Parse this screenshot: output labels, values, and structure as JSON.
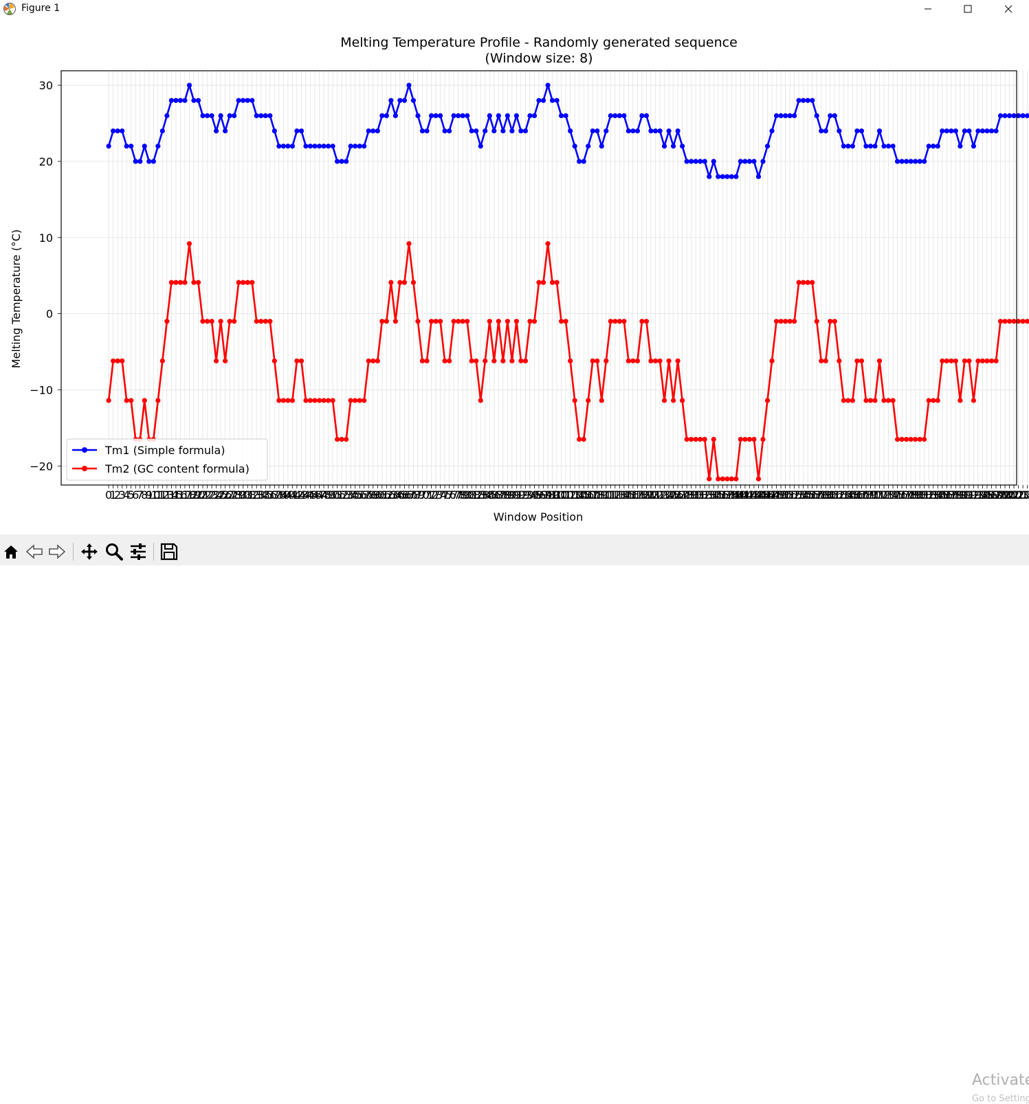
{
  "window": {
    "title": "Figure 1"
  },
  "toolbar": {
    "watermark": "Activate",
    "watermark_sub": "Go to Settings"
  },
  "colors": {
    "tm1": "#0000ff",
    "tm2": "#ff0000"
  },
  "chart_data": {
    "type": "line",
    "title": "Melting Temperature Profile - Randomly generated sequence",
    "subtitle": "(Window size: 8)",
    "xlabel": "Window Position",
    "ylabel": "Melting Temperature (°C)",
    "ylim": [
      -22.5,
      31.9
    ],
    "xlim": [
      -10.6,
      202.6
    ],
    "yticks": [
      -20,
      -10,
      0,
      10,
      20,
      30
    ],
    "grid": true,
    "legend_position": "lower-left",
    "x_start": 0,
    "series": [
      {
        "name": "Tm1 (Simple formula)",
        "color": "#0000ff",
        "values": [
          22,
          24,
          24,
          24,
          22,
          22,
          20,
          20,
          22,
          20,
          20,
          22,
          24,
          26,
          28,
          28,
          28,
          28,
          30,
          28,
          28,
          26,
          26,
          26,
          24,
          26,
          24,
          26,
          26,
          28,
          28,
          28,
          28,
          26,
          26,
          26,
          26,
          24,
          22,
          22,
          22,
          22,
          24,
          24,
          22,
          22,
          22,
          22,
          22,
          22,
          22,
          20,
          20,
          20,
          22,
          22,
          22,
          22,
          24,
          24,
          24,
          26,
          26,
          28,
          26,
          28,
          28,
          30,
          28,
          26,
          24,
          24,
          26,
          26,
          26,
          24,
          24,
          26,
          26,
          26,
          26,
          24,
          24,
          22,
          24,
          26,
          24,
          26,
          24,
          26,
          24,
          26,
          24,
          24,
          26,
          26,
          28,
          28,
          30,
          28,
          28,
          26,
          26,
          24,
          22,
          20,
          20,
          22,
          24,
          24,
          22,
          24,
          26,
          26,
          26,
          26,
          24,
          24,
          24,
          26,
          26,
          24,
          24,
          24,
          22,
          24,
          22,
          24,
          22,
          20,
          20,
          20,
          20,
          20,
          18,
          20,
          18,
          18,
          18,
          18,
          18,
          20,
          20,
          20,
          20,
          18,
          20,
          22,
          24,
          26,
          26,
          26,
          26,
          26,
          28,
          28,
          28,
          28,
          26,
          24,
          24,
          26,
          26,
          24,
          22,
          22,
          22,
          24,
          24,
          22,
          22,
          22,
          24,
          22,
          22,
          22,
          20,
          20,
          20,
          20,
          20,
          20,
          20,
          22,
          22,
          22,
          24,
          24,
          24,
          24,
          22,
          24,
          24,
          22,
          24,
          24,
          24,
          24,
          24,
          26,
          26,
          26,
          26,
          26,
          26,
          26
        ]
      },
      {
        "name": "Tm2 (GC content formula)",
        "color": "#ff0000",
        "values": [
          -11.4,
          -6.2,
          -6.2,
          -6.2,
          -11.4,
          -11.4,
          -16.5,
          -16.5,
          -11.4,
          -16.5,
          -16.5,
          -11.4,
          -6.2,
          -1.0,
          4.1,
          4.1,
          4.1,
          4.1,
          9.2,
          4.1,
          4.1,
          -1.0,
          -1.0,
          -1.0,
          -6.2,
          -1.0,
          -6.2,
          -1.0,
          -1.0,
          4.1,
          4.1,
          4.1,
          4.1,
          -1.0,
          -1.0,
          -1.0,
          -1.0,
          -6.2,
          -11.4,
          -11.4,
          -11.4,
          -11.4,
          -6.2,
          -6.2,
          -11.4,
          -11.4,
          -11.4,
          -11.4,
          -11.4,
          -11.4,
          -11.4,
          -16.5,
          -16.5,
          -16.5,
          -11.4,
          -11.4,
          -11.4,
          -11.4,
          -6.2,
          -6.2,
          -6.2,
          -1.0,
          -1.0,
          4.1,
          -1.0,
          4.1,
          4.1,
          9.2,
          4.1,
          -1.0,
          -6.2,
          -6.2,
          -1.0,
          -1.0,
          -1.0,
          -6.2,
          -6.2,
          -1.0,
          -1.0,
          -1.0,
          -1.0,
          -6.2,
          -6.2,
          -11.4,
          -6.2,
          -1.0,
          -6.2,
          -1.0,
          -6.2,
          -1.0,
          -6.2,
          -1.0,
          -6.2,
          -6.2,
          -1.0,
          -1.0,
          4.1,
          4.1,
          9.2,
          4.1,
          4.1,
          -1.0,
          -1.0,
          -6.2,
          -11.4,
          -16.5,
          -16.5,
          -11.4,
          -6.2,
          -6.2,
          -11.4,
          -6.2,
          -1.0,
          -1.0,
          -1.0,
          -1.0,
          -6.2,
          -6.2,
          -6.2,
          -1.0,
          -1.0,
          -6.2,
          -6.2,
          -6.2,
          -11.4,
          -6.2,
          -11.4,
          -6.2,
          -11.4,
          -16.5,
          -16.5,
          -16.5,
          -16.5,
          -16.5,
          -21.7,
          -16.5,
          -21.7,
          -21.7,
          -21.7,
          -21.7,
          -21.7,
          -16.5,
          -16.5,
          -16.5,
          -16.5,
          -21.7,
          -16.5,
          -11.4,
          -6.2,
          -1.0,
          -1.0,
          -1.0,
          -1.0,
          -1.0,
          4.1,
          4.1,
          4.1,
          4.1,
          -1.0,
          -6.2,
          -6.2,
          -1.0,
          -1.0,
          -6.2,
          -11.4,
          -11.4,
          -11.4,
          -6.2,
          -6.2,
          -11.4,
          -11.4,
          -11.4,
          -6.2,
          -11.4,
          -11.4,
          -11.4,
          -16.5,
          -16.5,
          -16.5,
          -16.5,
          -16.5,
          -16.5,
          -16.5,
          -11.4,
          -11.4,
          -11.4,
          -6.2,
          -6.2,
          -6.2,
          -6.2,
          -11.4,
          -6.2,
          -6.2,
          -11.4,
          -6.2,
          -6.2,
          -6.2,
          -6.2,
          -6.2,
          -1.0,
          -1.0,
          -1.0,
          -1.0,
          -1.0,
          -1.0,
          -1.0
        ]
      }
    ]
  }
}
